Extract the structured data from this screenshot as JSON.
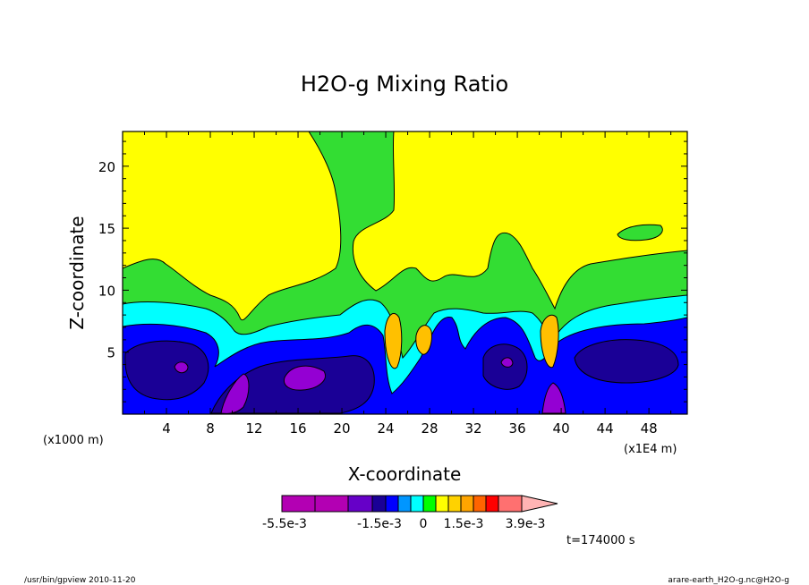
{
  "chart_data": {
    "type": "heatmap",
    "title": "H2O-g Mixing Ratio",
    "xlabel": "X-coordinate",
    "ylabel": "Z-coordinate",
    "x_unit_left": "(x1000 m)",
    "x_unit_right": "(x1E4 m)",
    "xlim": [
      0,
      51.5
    ],
    "ylim": [
      0,
      22.8
    ],
    "xticks": [
      "4",
      "8",
      "12",
      "16",
      "20",
      "24",
      "28",
      "32",
      "36",
      "40",
      "44",
      "48"
    ],
    "xtick_values": [
      4,
      8,
      12,
      16,
      20,
      24,
      28,
      32,
      36,
      40,
      44,
      48
    ],
    "yticks": [
      "5",
      "10",
      "15",
      "20"
    ],
    "ytick_values": [
      5,
      10,
      15,
      20
    ],
    "grid": false,
    "field_description_levels": [
      "yellow",
      "green",
      "cyan",
      "blue",
      "dark-blue",
      "purple",
      "orange"
    ],
    "colorbar": {
      "colors": [
        "#b300b3",
        "#b300b3",
        "#6600c8",
        "#1a0096",
        "#0000ff",
        "#0096ff",
        "#00ffff",
        "#00ff00",
        "#ffff00",
        "#ffd200",
        "#ffa500",
        "#ff6400",
        "#ff0000",
        "#ff7070",
        "#ffb4b4"
      ],
      "tick_labels": [
        "-5.5e-3",
        "-1.5e-3",
        "0",
        "1.5e-3",
        "3.9e-3"
      ]
    },
    "time_label": "t=174000 s"
  },
  "footer": {
    "left": "/usr/bin/gpview  2010-11-20",
    "right": "arare-earth_H2O-g.nc@H2O-g"
  },
  "colors": {
    "yellow": "#ffff00",
    "green": "#33dd33",
    "cyan": "#00ffff",
    "blue": "#0000ff",
    "darkblue": "#1a0096",
    "purple": "#9400d3",
    "orange": "#ffc000"
  }
}
